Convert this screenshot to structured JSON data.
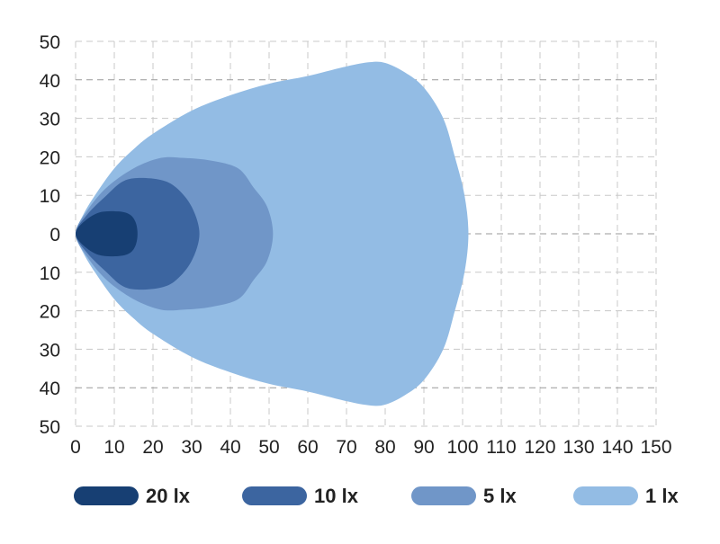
{
  "chart_data": {
    "type": "area",
    "title": "",
    "xlabel": "",
    "ylabel": "",
    "xlim": [
      0,
      150
    ],
    "ylim": [
      -50,
      50
    ],
    "x_ticks": [
      "0",
      "10",
      "20",
      "30",
      "40",
      "50",
      "60",
      "70",
      "80",
      "90",
      "100",
      "110",
      "120",
      "130",
      "140",
      "150"
    ],
    "y_ticks": [
      "50",
      "40",
      "30",
      "20",
      "10",
      "0",
      "10",
      "20",
      "30",
      "40",
      "50"
    ],
    "grid": true,
    "legend_placement": "bottom",
    "symmetric_about_x_axis": true,
    "series": [
      {
        "name": "1 lx",
        "color": "#93bce4",
        "upper_outline": [
          [
            0,
            0
          ],
          [
            2,
            5
          ],
          [
            5,
            10
          ],
          [
            10,
            17
          ],
          [
            15,
            22
          ],
          [
            20,
            26
          ],
          [
            30,
            32
          ],
          [
            40,
            36
          ],
          [
            50,
            39
          ],
          [
            60,
            41
          ],
          [
            70,
            43.5
          ],
          [
            76,
            44.6
          ],
          [
            80,
            44.4
          ],
          [
            85,
            42
          ],
          [
            90,
            38
          ],
          [
            95,
            30
          ],
          [
            98,
            20
          ],
          [
            100.5,
            10
          ],
          [
            101.5,
            0
          ]
        ]
      },
      {
        "name": "5 lx",
        "color": "#7096c8",
        "upper_outline": [
          [
            0,
            0
          ],
          [
            3,
            6
          ],
          [
            8,
            12
          ],
          [
            15,
            17
          ],
          [
            22,
            19.7
          ],
          [
            28,
            19.7
          ],
          [
            35,
            19
          ],
          [
            42,
            17
          ],
          [
            46,
            12
          ],
          [
            49.5,
            7
          ],
          [
            51,
            0
          ]
        ]
      },
      {
        "name": "10 lx",
        "color": "#3c65a0",
        "upper_outline": [
          [
            0,
            0
          ],
          [
            3,
            5
          ],
          [
            8,
            10
          ],
          [
            12,
            13.5
          ],
          [
            16,
            14.5
          ],
          [
            22,
            14
          ],
          [
            26,
            12
          ],
          [
            30,
            7
          ],
          [
            32,
            0
          ]
        ]
      },
      {
        "name": "20 lx",
        "color": "#173f73",
        "upper_outline": [
          [
            0,
            0
          ],
          [
            2,
            3
          ],
          [
            6,
            5.5
          ],
          [
            11,
            5.8
          ],
          [
            14,
            5
          ],
          [
            15.5,
            3
          ],
          [
            16,
            0
          ]
        ]
      }
    ],
    "legend": [
      {
        "label": "20 lx",
        "color": "#173f73"
      },
      {
        "label": "10 lx",
        "color": "#3c65a0"
      },
      {
        "label": "5 lx",
        "color": "#7096c8"
      },
      {
        "label": "1 lx",
        "color": "#93bce4"
      }
    ]
  }
}
